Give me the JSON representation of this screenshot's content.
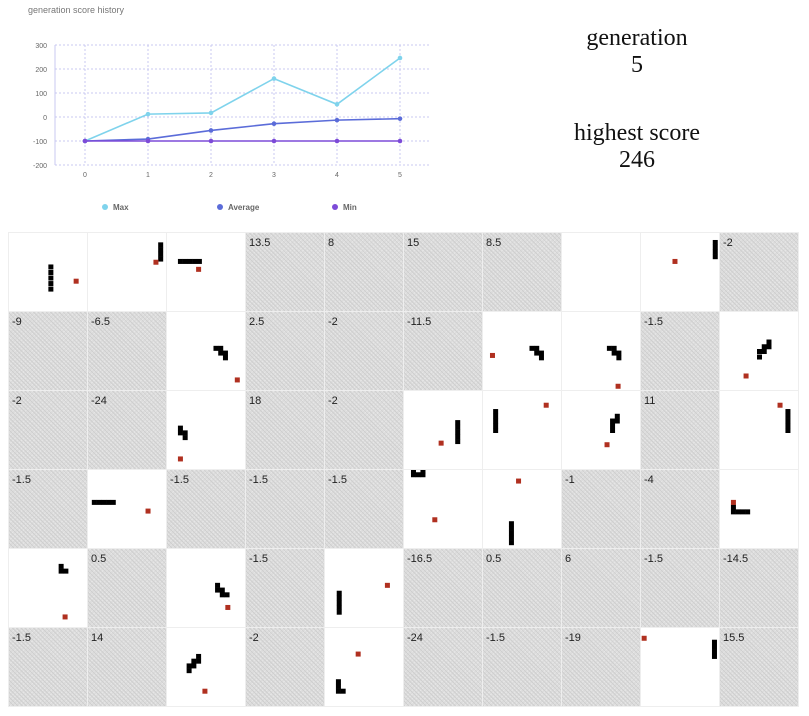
{
  "chart_data": {
    "type": "line",
    "title": "generation score history",
    "x": [
      0,
      1,
      2,
      3,
      4,
      5
    ],
    "ylim": [
      -200,
      300
    ],
    "yticks": [
      -200,
      -100,
      0,
      100,
      200,
      300
    ],
    "grid": true,
    "legend_position": "bottom",
    "series": [
      {
        "name": "Max",
        "color": "#7fd3ec",
        "values": [
          -100,
          12,
          17,
          160,
          53,
          246
        ]
      },
      {
        "name": "Average",
        "color": "#5b6cd9",
        "values": [
          -100,
          -92,
          -56,
          -28,
          -13,
          -7
        ]
      },
      {
        "name": "Min",
        "color": "#7d4bd8",
        "values": [
          -100,
          -100,
          -100,
          -100,
          -100,
          -100
        ]
      }
    ]
  },
  "stats": {
    "generation_label": "generation",
    "generation_value": "5",
    "highest_label": "highest score",
    "highest_value": "246"
  },
  "snake_colors": {
    "body": "#000000",
    "food": "#b03020"
  },
  "cells": [
    {
      "alive": true,
      "score": "",
      "food": [
        0.85,
        0.61
      ],
      "snake": [
        [
          0.53,
          0.43
        ],
        [
          0.53,
          0.5
        ],
        [
          0.53,
          0.57
        ],
        [
          0.53,
          0.64
        ],
        [
          0.53,
          0.71
        ]
      ]
    },
    {
      "alive": true,
      "score": "",
      "food": [
        0.86,
        0.37
      ],
      "snake": [
        [
          0.92,
          0.15
        ],
        [
          0.92,
          0.21
        ],
        [
          0.92,
          0.27
        ],
        [
          0.92,
          0.33
        ]
      ]
    },
    {
      "alive": true,
      "score": "",
      "food": [
        0.4,
        0.46
      ],
      "snake": [
        [
          0.17,
          0.36
        ],
        [
          0.23,
          0.36
        ],
        [
          0.29,
          0.36
        ],
        [
          0.35,
          0.36
        ],
        [
          0.41,
          0.36
        ]
      ]
    },
    {
      "alive": false,
      "score": "13.5"
    },
    {
      "alive": false,
      "score": "8"
    },
    {
      "alive": false,
      "score": "15"
    },
    {
      "alive": false,
      "score": "8.5"
    },
    {
      "alive": true,
      "score": "",
      "food": null,
      "snake": []
    },
    {
      "alive": true,
      "score": "",
      "food": [
        0.43,
        0.36
      ],
      "snake": [
        [
          0.94,
          0.12
        ],
        [
          0.94,
          0.18
        ],
        [
          0.94,
          0.24
        ],
        [
          0.94,
          0.3
        ]
      ]
    },
    {
      "alive": false,
      "score": "-2"
    },
    {
      "alive": false,
      "score": "-9"
    },
    {
      "alive": false,
      "score": "-6.5"
    },
    {
      "alive": true,
      "score": "",
      "food": [
        0.89,
        0.86
      ],
      "snake": [
        [
          0.62,
          0.46
        ],
        [
          0.68,
          0.46
        ],
        [
          0.68,
          0.52
        ],
        [
          0.74,
          0.52
        ],
        [
          0.74,
          0.58
        ]
      ]
    },
    {
      "alive": false,
      "score": "2.5"
    },
    {
      "alive": false,
      "score": "-2"
    },
    {
      "alive": false,
      "score": "-11.5"
    },
    {
      "alive": true,
      "score": "",
      "food": [
        0.12,
        0.55
      ],
      "snake": [
        [
          0.62,
          0.46
        ],
        [
          0.68,
          0.46
        ],
        [
          0.68,
          0.52
        ],
        [
          0.74,
          0.52
        ],
        [
          0.74,
          0.58
        ]
      ]
    },
    {
      "alive": true,
      "score": "",
      "food": [
        0.71,
        0.94
      ],
      "snake": [
        [
          0.6,
          0.46
        ],
        [
          0.66,
          0.46
        ],
        [
          0.66,
          0.52
        ],
        [
          0.72,
          0.52
        ],
        [
          0.72,
          0.58
        ]
      ]
    },
    {
      "alive": false,
      "score": "-1.5"
    },
    {
      "alive": true,
      "score": "",
      "food": [
        0.33,
        0.81
      ],
      "snake": [
        [
          0.5,
          0.57
        ],
        [
          0.5,
          0.5
        ],
        [
          0.56,
          0.5
        ],
        [
          0.56,
          0.44
        ],
        [
          0.62,
          0.44
        ],
        [
          0.62,
          0.38
        ]
      ]
    },
    {
      "alive": false,
      "score": "-2"
    },
    {
      "alive": false,
      "score": "-24"
    },
    {
      "alive": true,
      "score": "",
      "food": [
        0.17,
        0.86
      ],
      "snake": [
        [
          0.17,
          0.47
        ],
        [
          0.17,
          0.53
        ],
        [
          0.23,
          0.53
        ],
        [
          0.23,
          0.59
        ]
      ]
    },
    {
      "alive": false,
      "score": "18"
    },
    {
      "alive": false,
      "score": "-2"
    },
    {
      "alive": true,
      "score": "",
      "food": [
        0.47,
        0.66
      ],
      "snake": [
        [
          0.68,
          0.4
        ],
        [
          0.68,
          0.46
        ],
        [
          0.68,
          0.52
        ],
        [
          0.68,
          0.58
        ],
        [
          0.68,
          0.64
        ]
      ]
    },
    {
      "alive": true,
      "score": "",
      "food": [
        0.8,
        0.18
      ],
      "snake": [
        [
          0.16,
          0.26
        ],
        [
          0.16,
          0.32
        ],
        [
          0.16,
          0.38
        ],
        [
          0.16,
          0.44
        ],
        [
          0.16,
          0.5
        ]
      ]
    },
    {
      "alive": true,
      "score": "",
      "food": [
        0.57,
        0.68
      ],
      "snake": [
        [
          0.7,
          0.32
        ],
        [
          0.7,
          0.38
        ],
        [
          0.64,
          0.38
        ],
        [
          0.64,
          0.44
        ],
        [
          0.64,
          0.5
        ]
      ]
    },
    {
      "alive": false,
      "score": "11"
    },
    {
      "alive": true,
      "score": "",
      "food": [
        0.76,
        0.18
      ],
      "snake": [
        [
          0.86,
          0.26
        ],
        [
          0.86,
          0.32
        ],
        [
          0.86,
          0.38
        ],
        [
          0.86,
          0.44
        ],
        [
          0.86,
          0.5
        ]
      ]
    },
    {
      "alive": false,
      "score": "-1.5"
    },
    {
      "alive": true,
      "score": "",
      "food": [
        0.76,
        0.52
      ],
      "snake": [
        [
          0.08,
          0.41
        ],
        [
          0.14,
          0.41
        ],
        [
          0.2,
          0.41
        ],
        [
          0.26,
          0.41
        ],
        [
          0.32,
          0.41
        ]
      ]
    },
    {
      "alive": false,
      "score": "-1.5"
    },
    {
      "alive": false,
      "score": "-1.5"
    },
    {
      "alive": false,
      "score": "-1.5"
    },
    {
      "alive": true,
      "score": "",
      "food": [
        0.39,
        0.63
      ],
      "snake": [
        [
          0.12,
          0.02
        ],
        [
          0.12,
          0.06
        ],
        [
          0.18,
          0.06
        ],
        [
          0.24,
          0.06
        ],
        [
          0.24,
          0.02
        ]
      ]
    },
    {
      "alive": true,
      "score": "",
      "food": [
        0.45,
        0.14
      ],
      "snake": [
        [
          0.36,
          0.68
        ],
        [
          0.36,
          0.74
        ],
        [
          0.36,
          0.8
        ],
        [
          0.36,
          0.86
        ],
        [
          0.36,
          0.92
        ]
      ]
    },
    {
      "alive": false,
      "score": "-1"
    },
    {
      "alive": false,
      "score": "-4"
    },
    {
      "alive": true,
      "score": "",
      "food": [
        0.17,
        0.41
      ],
      "snake": [
        [
          0.17,
          0.47
        ],
        [
          0.17,
          0.53
        ],
        [
          0.23,
          0.53
        ],
        [
          0.29,
          0.53
        ],
        [
          0.35,
          0.53
        ]
      ]
    },
    {
      "alive": true,
      "score": "",
      "food": [
        0.71,
        0.86
      ],
      "snake": [
        [
          0.66,
          0.22
        ],
        [
          0.66,
          0.28
        ],
        [
          0.72,
          0.28
        ]
      ]
    },
    {
      "alive": false,
      "score": "0.5"
    },
    {
      "alive": true,
      "score": "",
      "food": [
        0.77,
        0.74
      ],
      "snake": [
        [
          0.64,
          0.46
        ],
        [
          0.64,
          0.52
        ],
        [
          0.7,
          0.52
        ],
        [
          0.7,
          0.58
        ],
        [
          0.76,
          0.58
        ]
      ]
    },
    {
      "alive": false,
      "score": "-1.5"
    },
    {
      "alive": true,
      "score": "",
      "food": [
        0.79,
        0.46
      ],
      "snake": [
        [
          0.18,
          0.56
        ],
        [
          0.18,
          0.62
        ],
        [
          0.18,
          0.68
        ],
        [
          0.18,
          0.74
        ],
        [
          0.18,
          0.8
        ]
      ]
    },
    {
      "alive": false,
      "score": "-16.5"
    },
    {
      "alive": false,
      "score": "0.5"
    },
    {
      "alive": false,
      "score": "6"
    },
    {
      "alive": false,
      "score": "-1.5"
    },
    {
      "alive": false,
      "score": "-14.5"
    },
    {
      "alive": false,
      "score": "-1.5"
    },
    {
      "alive": false,
      "score": "14"
    },
    {
      "alive": true,
      "score": "",
      "food": [
        0.48,
        0.8
      ],
      "snake": [
        [
          0.4,
          0.36
        ],
        [
          0.4,
          0.42
        ],
        [
          0.34,
          0.42
        ],
        [
          0.34,
          0.48
        ],
        [
          0.28,
          0.48
        ],
        [
          0.28,
          0.54
        ]
      ]
    },
    {
      "alive": false,
      "score": "-2"
    },
    {
      "alive": true,
      "score": "",
      "food": [
        0.42,
        0.33
      ],
      "snake": [
        [
          0.17,
          0.68
        ],
        [
          0.17,
          0.74
        ],
        [
          0.17,
          0.8
        ],
        [
          0.23,
          0.8
        ]
      ]
    },
    {
      "alive": false,
      "score": "-24"
    },
    {
      "alive": false,
      "score": "-1.5"
    },
    {
      "alive": false,
      "score": "-19"
    },
    {
      "alive": true,
      "score": "",
      "food": [
        0.04,
        0.13
      ],
      "snake": [
        [
          0.93,
          0.18
        ],
        [
          0.93,
          0.24
        ],
        [
          0.93,
          0.3
        ],
        [
          0.93,
          0.36
        ]
      ]
    },
    {
      "alive": false,
      "score": "15.5"
    }
  ]
}
